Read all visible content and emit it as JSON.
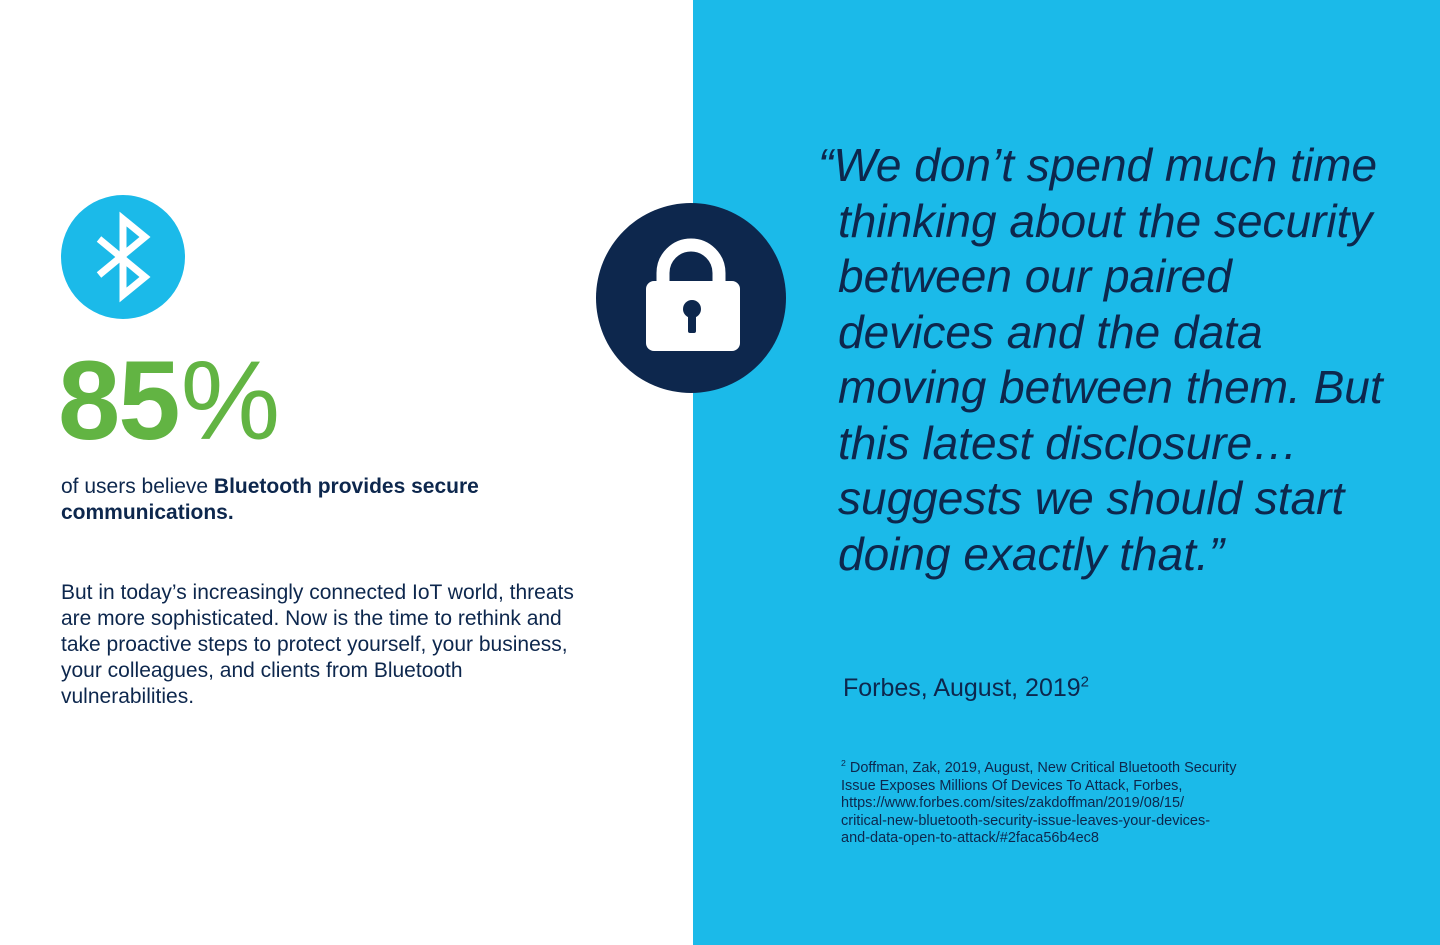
{
  "colors": {
    "accent_blue": "#1bbae9",
    "navy": "#0d274d",
    "green": "#62b443",
    "white": "#ffffff"
  },
  "icons": {
    "left_badge": "bluetooth-icon",
    "center_badge": "lock-icon"
  },
  "stat": {
    "number": "85",
    "unit": "%",
    "caption_prefix": "of users believe ",
    "caption_bold": "Bluetooth provides secure communications."
  },
  "body_text": "But in today’s increasingly connected IoT world, threats are more sophisticated. Now is the time to rethink and take proactive steps to protect yourself, your business, your colleagues, and clients from Bluetooth vulnerabilities.",
  "quote": {
    "text": "“We don’t spend much time thinking about the security between our paired devices and the data moving between them. But this latest disclosure…suggests we should start doing exactly that.”",
    "source": "Forbes, August, 2019",
    "source_ref": "2"
  },
  "footnote": {
    "marker": "2",
    "lines": [
      "Doffman, Zak, 2019, August, New Critical Bluetooth Security",
      "Issue Exposes Millions Of Devices To Attack, Forbes,",
      "https://www.forbes.com/sites/zakdoffman/2019/08/15/",
      "critical-new-bluetooth-security-issue-leaves-your-devices-",
      "and-data-open-to-attack/#2faca56b4ec8"
    ]
  }
}
